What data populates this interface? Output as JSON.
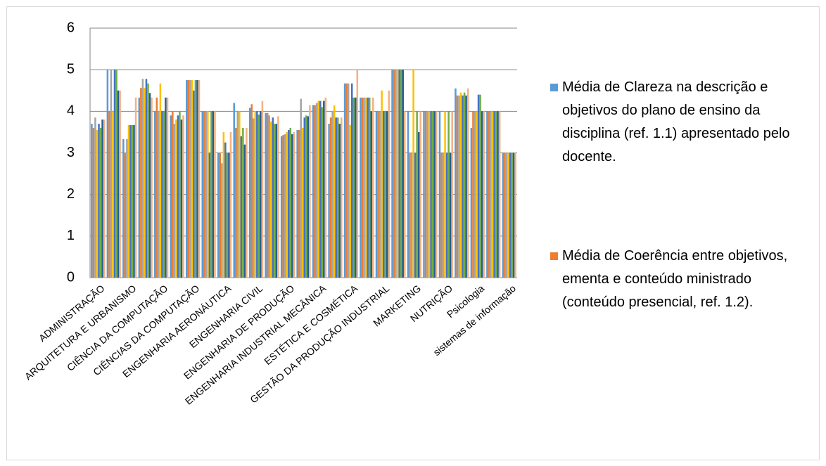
{
  "chart_data": {
    "type": "bar",
    "categories": [
      "ADMINISTRAÇÃO",
      null,
      "ARQUITETURA E URBANISMO",
      null,
      "CIÊNCIA DA COMPUTAÇÃO",
      null,
      "CIÊNCIAS DA COMPUTAÇÃO",
      null,
      "ENGENHARIA AERONÁUTICA",
      null,
      "ENGENHARIA CIVIL",
      null,
      "ENGENHARIA DE PRODUÇÃO",
      null,
      "ENGENHARIA INDUSTRIAL MECÂNICA",
      null,
      "ESTÉTICA E COSMÉTICA",
      null,
      "GESTÃO DA PRODUÇÃO INDUSTRIAL",
      null,
      "MARKETING",
      null,
      "NUTRIÇÃO",
      null,
      "Psicologia",
      null,
      "sistemas de informação"
    ],
    "series": [
      {
        "name": "Média de Clareza na descrição e objetivos do plano de ensino da disciplina (ref. 1.1) apresentado pelo docente.",
        "color": "#5b9bd5",
        "values": [
          3.7,
          5,
          3.33,
          4.33,
          4,
          3.9,
          4.75,
          4,
          3,
          4.2,
          4.08,
          3.96,
          3.4,
          3.55,
          4.15,
          3.7,
          4.67,
          4.33,
          4,
          5,
          4,
          4,
          4,
          4.55,
          3.6,
          4,
          3
        ]
      },
      {
        "name": "Média de Coerência entre objetivos, ementa e conteúdo ministrado (conteúdo presencial, ref. 1.2).",
        "color": "#ed7d31",
        "values": [
          3.6,
          4,
          3,
          4.56,
          4.33,
          4,
          4.75,
          4,
          3,
          3.6,
          4.17,
          3.96,
          3.43,
          3.55,
          4.15,
          3.85,
          4.67,
          4.33,
          4,
          5,
          3,
          4,
          3,
          4.38,
          4,
          4,
          3
        ]
      },
      {
        "color": "#a5a5a5",
        "values": [
          3.85,
          5,
          3.33,
          4.78,
          4,
          3.7,
          4.75,
          4,
          2.75,
          4,
          3.83,
          3.9,
          3.45,
          4.3,
          4.2,
          4,
          4.67,
          4.33,
          4,
          5,
          3,
          4,
          3,
          4.38,
          4,
          4,
          3
        ]
      },
      {
        "color": "#ffc000",
        "values": [
          3.55,
          4,
          3.67,
          4.56,
          4.67,
          3.8,
          4.75,
          4,
          3.5,
          4,
          4,
          3.75,
          3.5,
          3.6,
          4.25,
          4.14,
          3.67,
          4.33,
          4.5,
          5,
          5,
          4,
          4,
          4.45,
          4,
          4,
          3
        ]
      },
      {
        "color": "#4472c4",
        "values": [
          3.7,
          5,
          3.67,
          4.78,
          4,
          3.9,
          4.5,
          3,
          3.25,
          3.4,
          4,
          3.85,
          3.55,
          3.85,
          4.25,
          3.85,
          4.67,
          4.33,
          4,
          5,
          3,
          4,
          3,
          4.38,
          4.4,
          4,
          3
        ]
      },
      {
        "color": "#70ad47",
        "values": [
          3.6,
          5,
          3.67,
          4.67,
          4,
          4,
          4.75,
          4,
          3,
          3.6,
          3.92,
          3.7,
          3.6,
          3.9,
          4.1,
          3.85,
          4.33,
          4.33,
          4,
          5,
          4,
          4,
          4,
          4.45,
          4.4,
          4,
          3
        ]
      },
      {
        "color": "#255e91",
        "values": [
          3.8,
          4.5,
          3.67,
          4.44,
          4.33,
          3.8,
          4.75,
          4,
          3,
          3.2,
          4,
          3.7,
          3.45,
          3.88,
          4.25,
          3.7,
          4.33,
          4,
          4,
          5,
          3.5,
          4,
          3,
          4.38,
          4,
          4,
          3
        ]
      },
      {
        "color": "#f4b183",
        "values": [
          3.8,
          4.5,
          4.33,
          4.33,
          4.33,
          3.9,
          4.75,
          4,
          3.5,
          3.6,
          4.25,
          3.88,
          3.5,
          4.15,
          4.33,
          3.85,
          5,
          4.33,
          4.5,
          4,
          4,
          4,
          4,
          4.55,
          4,
          4,
          3
        ]
      }
    ],
    "ylim": [
      0,
      6
    ],
    "yticks": [
      0,
      1,
      2,
      3,
      4,
      5,
      6
    ],
    "grid": true
  }
}
